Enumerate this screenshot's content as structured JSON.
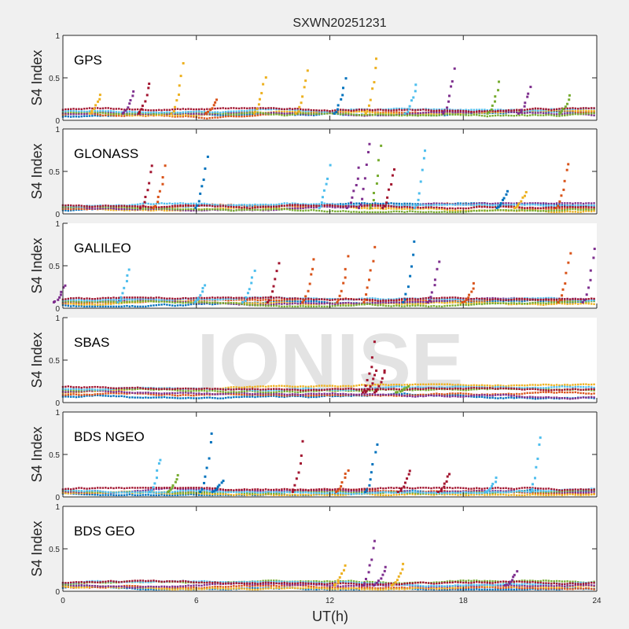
{
  "chart_data": {
    "type": "scatter",
    "title": "SXWN20251231",
    "xlabel": "UT(h)",
    "ylabel": "S4 Index",
    "xlim": [
      0,
      24
    ],
    "ylim": [
      0,
      1
    ],
    "xticks": [
      "0",
      "6",
      "12",
      "18",
      "24"
    ],
    "yticks": [
      "0",
      "0.5",
      "1"
    ],
    "watermark": "IONISE",
    "grid": false,
    "legend": "none",
    "colors": [
      "#0072bd",
      "#d95319",
      "#edb120",
      "#7e2f8e",
      "#77ac30",
      "#4dbeee",
      "#a2142f"
    ],
    "panels": [
      {
        "label": "GPS",
        "baseline": 0.08,
        "spikes": [
          {
            "x": 1.7,
            "y": 0.33,
            "c": 2
          },
          {
            "x": 3.2,
            "y": 0.38,
            "c": 3
          },
          {
            "x": 3.9,
            "y": 0.48,
            "c": 6
          },
          {
            "x": 5.4,
            "y": 0.71,
            "c": 2
          },
          {
            "x": 6.9,
            "y": 0.25,
            "c": 1
          },
          {
            "x": 9.1,
            "y": 0.54,
            "c": 2
          },
          {
            "x": 11.0,
            "y": 0.64,
            "c": 2
          },
          {
            "x": 12.7,
            "y": 0.5,
            "c": 0
          },
          {
            "x": 14.1,
            "y": 0.8,
            "c": 2
          },
          {
            "x": 15.9,
            "y": 0.46,
            "c": 5
          },
          {
            "x": 17.6,
            "y": 0.64,
            "c": 3
          },
          {
            "x": 19.6,
            "y": 0.46,
            "c": 4
          },
          {
            "x": 21.0,
            "y": 0.42,
            "c": 3
          },
          {
            "x": 22.8,
            "y": 0.3,
            "c": 4
          }
        ]
      },
      {
        "label": "GLONASS",
        "baseline": 0.07,
        "spikes": [
          {
            "x": 4.0,
            "y": 0.63,
            "c": 6
          },
          {
            "x": 4.6,
            "y": 0.59,
            "c": 1
          },
          {
            "x": 6.5,
            "y": 0.73,
            "c": 0
          },
          {
            "x": 12.0,
            "y": 0.58,
            "c": 5
          },
          {
            "x": 13.3,
            "y": 0.57,
            "c": 3
          },
          {
            "x": 13.8,
            "y": 0.95,
            "c": 3
          },
          {
            "x": 14.3,
            "y": 0.81,
            "c": 4
          },
          {
            "x": 14.9,
            "y": 0.6,
            "c": 6
          },
          {
            "x": 16.3,
            "y": 0.85,
            "c": 5
          },
          {
            "x": 20.0,
            "y": 0.3,
            "c": 0
          },
          {
            "x": 20.8,
            "y": 0.28,
            "c": 2
          },
          {
            "x": 22.7,
            "y": 0.66,
            "c": 1
          }
        ]
      },
      {
        "label": "GALILEO",
        "baseline": 0.07,
        "spikes": [
          {
            "x": 0.1,
            "y": 0.3,
            "c": 3
          },
          {
            "x": 3.0,
            "y": 0.5,
            "c": 5
          },
          {
            "x": 6.4,
            "y": 0.29,
            "c": 5
          },
          {
            "x": 8.6,
            "y": 0.5,
            "c": 5
          },
          {
            "x": 9.7,
            "y": 0.57,
            "c": 6
          },
          {
            "x": 11.3,
            "y": 0.64,
            "c": 1
          },
          {
            "x": 12.8,
            "y": 0.65,
            "c": 1
          },
          {
            "x": 14.0,
            "y": 0.77,
            "c": 1
          },
          {
            "x": 15.8,
            "y": 0.83,
            "c": 0
          },
          {
            "x": 16.9,
            "y": 0.58,
            "c": 3
          },
          {
            "x": 18.5,
            "y": 0.3,
            "c": 1
          },
          {
            "x": 22.8,
            "y": 0.69,
            "c": 1
          },
          {
            "x": 23.9,
            "y": 0.8,
            "c": 3
          }
        ]
      },
      {
        "label": "SBAS",
        "baseline": 0.12,
        "spikes": [
          {
            "x": 14.0,
            "y": 0.72,
            "c": 6
          },
          {
            "x": 14.1,
            "y": 0.42,
            "c": 6
          },
          {
            "x": 14.5,
            "y": 0.42,
            "c": 6
          },
          {
            "x": 15.5,
            "y": 0.2,
            "c": 4
          }
        ]
      },
      {
        "label": "BDS NGEO",
        "baseline": 0.06,
        "spikes": [
          {
            "x": 4.4,
            "y": 0.49,
            "c": 5
          },
          {
            "x": 5.2,
            "y": 0.27,
            "c": 4
          },
          {
            "x": 6.7,
            "y": 0.83,
            "c": 0
          },
          {
            "x": 7.2,
            "y": 0.21,
            "c": 0
          },
          {
            "x": 10.8,
            "y": 0.67,
            "c": 6
          },
          {
            "x": 12.8,
            "y": 0.35,
            "c": 1
          },
          {
            "x": 14.1,
            "y": 0.66,
            "c": 0
          },
          {
            "x": 15.6,
            "y": 0.33,
            "c": 6
          },
          {
            "x": 17.4,
            "y": 0.3,
            "c": 6
          },
          {
            "x": 19.5,
            "y": 0.23,
            "c": 5
          },
          {
            "x": 21.5,
            "y": 0.78,
            "c": 5
          }
        ]
      },
      {
        "label": "BDS GEO",
        "baseline": 0.07,
        "spikes": [
          {
            "x": 12.7,
            "y": 0.33,
            "c": 2
          },
          {
            "x": 14.0,
            "y": 0.67,
            "c": 3
          },
          {
            "x": 14.5,
            "y": 0.3,
            "c": 3
          },
          {
            "x": 15.3,
            "y": 0.33,
            "c": 2
          },
          {
            "x": 20.4,
            "y": 0.24,
            "c": 3
          }
        ]
      }
    ]
  }
}
